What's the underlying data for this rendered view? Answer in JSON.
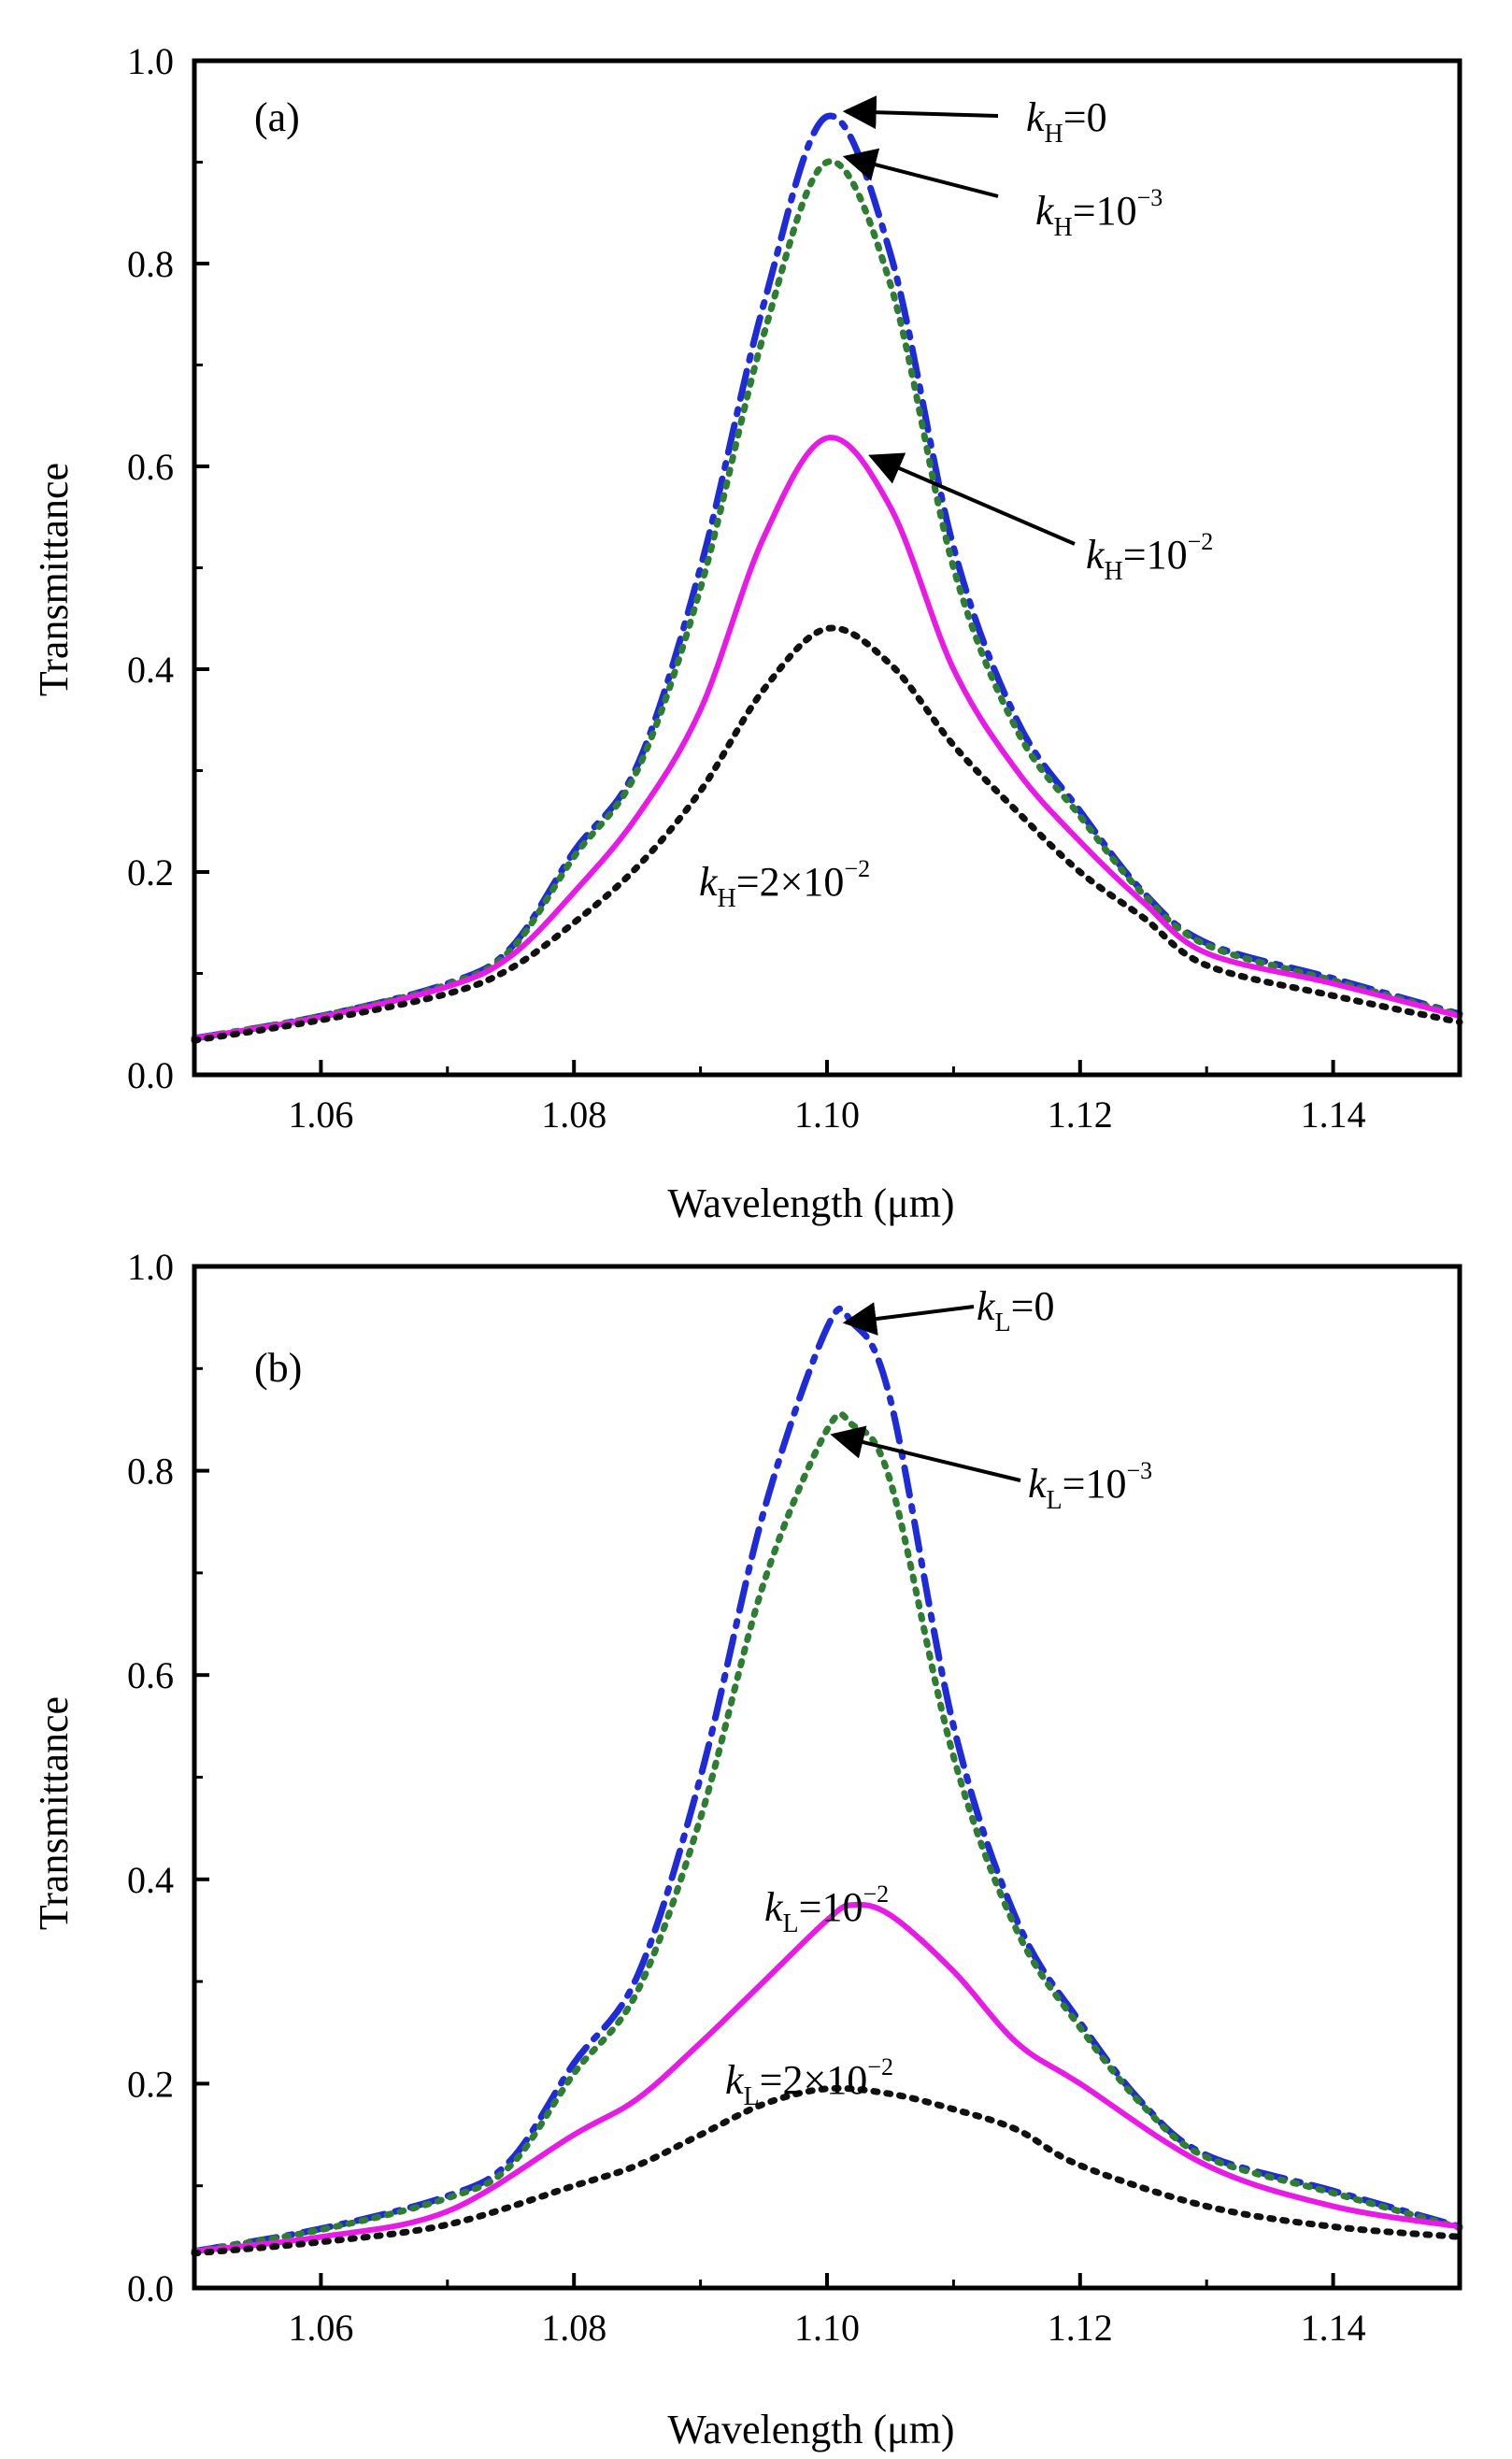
{
  "chart_data": [
    {
      "type": "line",
      "panel_label": "(a)",
      "xlabel": "Wavelength (μm)",
      "ylabel": "Transmittance",
      "xlim": [
        1.05,
        1.15
      ],
      "ylim": [
        0.0,
        1.0
      ],
      "xticks": [
        "1.06",
        "1.08",
        "1.10",
        "1.12",
        "1.14"
      ],
      "yticks": [
        "0.0",
        "0.2",
        "0.4",
        "0.6",
        "0.8",
        "1.0"
      ],
      "grid": false,
      "series": [
        {
          "color": "#1f2bd6",
          "style": "dash-dot",
          "x": [
            1.05,
            1.06,
            1.07,
            1.075,
            1.08,
            1.085,
            1.09,
            1.095,
            1.1,
            1.105,
            1.11,
            1.115,
            1.12,
            1.125,
            1.13,
            1.14,
            1.15
          ],
          "y": [
            0.036,
            0.058,
            0.09,
            0.125,
            0.22,
            0.305,
            0.5,
            0.76,
            0.945,
            0.81,
            0.52,
            0.35,
            0.26,
            0.18,
            0.13,
            0.095,
            0.06
          ]
        },
        {
          "color": "#2e7d32",
          "style": "dotted",
          "x": [
            1.05,
            1.06,
            1.07,
            1.075,
            1.08,
            1.085,
            1.09,
            1.095,
            1.1,
            1.105,
            1.11,
            1.115,
            1.12,
            1.125,
            1.13,
            1.14,
            1.15
          ],
          "y": [
            0.036,
            0.058,
            0.089,
            0.123,
            0.215,
            0.3,
            0.48,
            0.73,
            0.9,
            0.78,
            0.5,
            0.34,
            0.255,
            0.178,
            0.128,
            0.093,
            0.059
          ]
        },
        {
          "color": "#e81be6",
          "style": "solid",
          "x": [
            1.05,
            1.06,
            1.07,
            1.075,
            1.08,
            1.085,
            1.09,
            1.095,
            1.1,
            1.105,
            1.11,
            1.115,
            1.12,
            1.125,
            1.13,
            1.14,
            1.15
          ],
          "y": [
            0.036,
            0.057,
            0.087,
            0.117,
            0.18,
            0.255,
            0.36,
            0.53,
            0.628,
            0.56,
            0.4,
            0.3,
            0.23,
            0.17,
            0.12,
            0.09,
            0.058
          ]
        },
        {
          "color": "#111111",
          "style": "dotted",
          "x": [
            1.05,
            1.06,
            1.07,
            1.075,
            1.08,
            1.085,
            1.09,
            1.095,
            1.1,
            1.105,
            1.11,
            1.115,
            1.12,
            1.125,
            1.13,
            1.14,
            1.15
          ],
          "y": [
            0.034,
            0.054,
            0.08,
            0.105,
            0.15,
            0.205,
            0.28,
            0.38,
            0.44,
            0.405,
            0.325,
            0.26,
            0.2,
            0.155,
            0.108,
            0.078,
            0.052
          ]
        }
      ],
      "annotations": [
        {
          "k": "k",
          "sub": "H",
          "text": "=0"
        },
        {
          "k": "k",
          "sub": "H",
          "text": "=10",
          "sup": "−3"
        },
        {
          "k": "k",
          "sub": "H",
          "text": "=10",
          "sup": "−2"
        },
        {
          "k": "k",
          "sub": "H",
          "text": "=2×10",
          "sup": "−2"
        }
      ]
    },
    {
      "type": "line",
      "panel_label": "(b)",
      "xlabel": "Wavelength (μm)",
      "ylabel": "Transmittance",
      "xlim": [
        1.05,
        1.15
      ],
      "ylim": [
        0.0,
        1.0
      ],
      "xticks": [
        "1.06",
        "1.08",
        "1.10",
        "1.12",
        "1.14"
      ],
      "yticks": [
        "0.0",
        "0.2",
        "0.4",
        "0.6",
        "0.8",
        "1.0"
      ],
      "grid": false,
      "series": [
        {
          "color": "#1f2bd6",
          "style": "dash-dot",
          "x": [
            1.05,
            1.06,
            1.07,
            1.075,
            1.08,
            1.085,
            1.09,
            1.095,
            1.1,
            1.102,
            1.105,
            1.11,
            1.115,
            1.12,
            1.125,
            1.13,
            1.14,
            1.15
          ],
          "y": [
            0.036,
            0.058,
            0.09,
            0.125,
            0.22,
            0.305,
            0.5,
            0.76,
            0.94,
            0.945,
            0.87,
            0.55,
            0.36,
            0.26,
            0.18,
            0.13,
            0.095,
            0.06
          ]
        },
        {
          "color": "#2e7d32",
          "style": "dotted",
          "x": [
            1.05,
            1.06,
            1.07,
            1.075,
            1.08,
            1.085,
            1.09,
            1.095,
            1.1,
            1.102,
            1.105,
            1.11,
            1.115,
            1.12,
            1.125,
            1.13,
            1.14,
            1.15
          ],
          "y": [
            0.036,
            0.057,
            0.088,
            0.12,
            0.21,
            0.29,
            0.46,
            0.69,
            0.84,
            0.845,
            0.79,
            0.52,
            0.35,
            0.255,
            0.178,
            0.128,
            0.093,
            0.059
          ]
        },
        {
          "color": "#e81be6",
          "style": "solid",
          "x": [
            1.05,
            1.06,
            1.07,
            1.08,
            1.085,
            1.09,
            1.095,
            1.1,
            1.102,
            1.105,
            1.11,
            1.115,
            1.12,
            1.13,
            1.14,
            1.15
          ],
          "y": [
            0.036,
            0.05,
            0.075,
            0.15,
            0.185,
            0.24,
            0.3,
            0.36,
            0.375,
            0.365,
            0.31,
            0.24,
            0.2,
            0.12,
            0.08,
            0.06
          ]
        },
        {
          "color": "#111111",
          "style": "dotted",
          "x": [
            1.05,
            1.06,
            1.07,
            1.08,
            1.085,
            1.09,
            1.095,
            1.1,
            1.105,
            1.11,
            1.115,
            1.12,
            1.13,
            1.14,
            1.15
          ],
          "y": [
            0.034,
            0.045,
            0.062,
            0.1,
            0.12,
            0.15,
            0.18,
            0.195,
            0.19,
            0.175,
            0.155,
            0.12,
            0.08,
            0.06,
            0.05
          ]
        }
      ],
      "annotations": [
        {
          "k": "k",
          "sub": "L",
          "text": "=0"
        },
        {
          "k": "k",
          "sub": "L",
          "text": "=10",
          "sup": "−3"
        },
        {
          "k": "k",
          "sub": "L",
          "text": "=10",
          "sup": "−2"
        },
        {
          "k": "k",
          "sub": "L",
          "text": "=2×10",
          "sup": "−2"
        }
      ]
    }
  ]
}
